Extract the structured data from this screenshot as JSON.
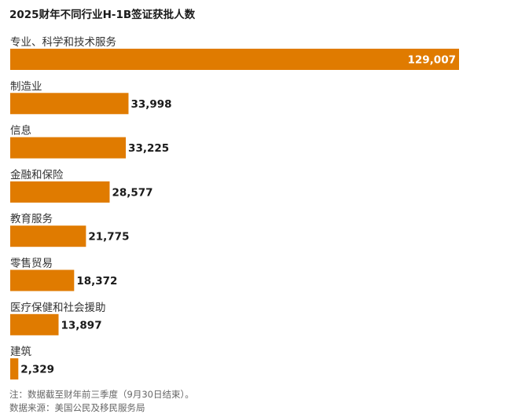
{
  "chart_data": {
    "type": "bar",
    "orientation": "horizontal",
    "title": "2025财年不同行业H-1B签证获批人数",
    "categories": [
      "专业、科学和技术服务",
      "制造业",
      "信息",
      "金融和保险",
      "教育服务",
      "零售贸易",
      "医疗保健和社会援助",
      "建筑"
    ],
    "values": [
      129007,
      33998,
      33225,
      28577,
      21775,
      18372,
      13897,
      2329
    ],
    "value_labels": [
      "129,007",
      "33,998",
      "33,225",
      "28,577",
      "21,775",
      "18,372",
      "13,897",
      "2,329"
    ],
    "xlim": [
      0,
      129007
    ],
    "grid": false,
    "xlabel": "",
    "ylabel": "",
    "bar_color": "#e07b00",
    "label_inside_color": "#ffffff",
    "label_outside_color": "#1a1a1a"
  },
  "footer": {
    "note": "注：数据截至财年前三季度（9月30日结束）。",
    "source": "数据来源：美国公民及移民服务局"
  }
}
